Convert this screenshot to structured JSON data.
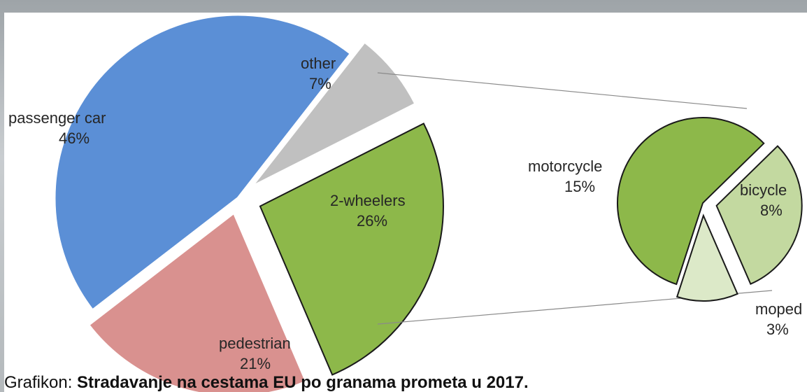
{
  "chart_data": {
    "type": "pie",
    "subtype": "bar-of-pie",
    "main": {
      "slices": [
        {
          "label": "passenger car",
          "value_label": "46%",
          "value": 46,
          "color": "#5b8fd6"
        },
        {
          "label": "other",
          "value_label": "7%",
          "value": 7,
          "color": "#c0c0c0"
        },
        {
          "label": "2-wheelers",
          "value_label": "26%",
          "value": 26,
          "color": "#8db84a"
        },
        {
          "label": "pedestrian",
          "value_label": "21%",
          "value": 21,
          "color": "#d9918f"
        }
      ]
    },
    "secondary": {
      "slices": [
        {
          "label": "motorcycle",
          "value_label": "15%",
          "value": 15,
          "color": "#8db84a"
        },
        {
          "label": "bicycle",
          "value_label": "8%",
          "value": 8,
          "color": "#c3d9a0"
        },
        {
          "label": "moped",
          "value_label": "3%",
          "value": 3,
          "color": "#dce9c8"
        }
      ]
    }
  },
  "caption": {
    "prefix": "Grafikon: ",
    "title": "Stradavanje na cestama EU po granama prometa u 2017."
  }
}
